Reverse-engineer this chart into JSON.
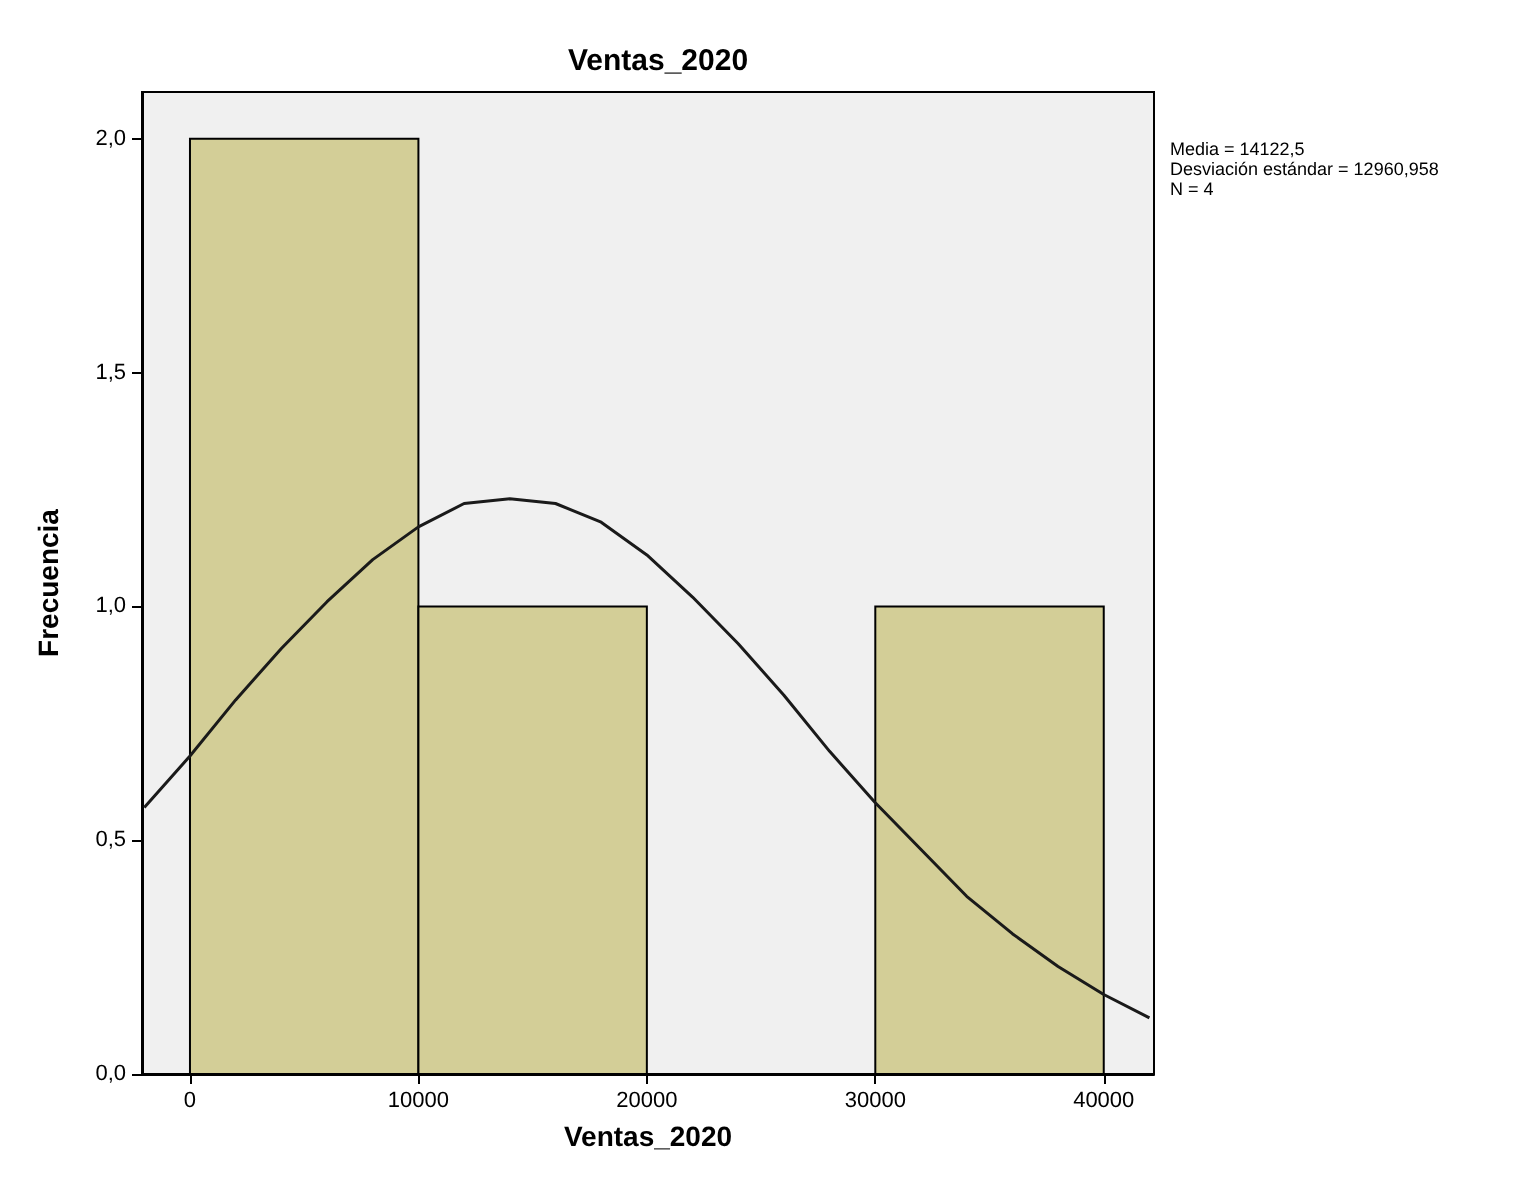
{
  "chart_data": {
    "type": "histogram",
    "title": "Ventas_2020",
    "xlabel": "Ventas_2020",
    "ylabel": "Frecuencia",
    "bins": [
      0,
      10000,
      20000,
      30000,
      40000
    ],
    "values": [
      2,
      1,
      0,
      1
    ],
    "color": "#d3ce97",
    "series": [
      {
        "type": "line",
        "color": "#1a1a1a",
        "x": [
          -2000,
          0,
          2000,
          4000,
          6000,
          8000,
          10000,
          12000,
          14000,
          16000,
          18000,
          20000,
          22000,
          24000,
          26000,
          28000,
          30000,
          32000,
          34000,
          36000,
          38000,
          40000,
          42000
        ],
        "values": [
          0.57,
          0.68,
          0.8,
          0.91,
          1.01,
          1.1,
          1.17,
          1.22,
          1.23,
          1.22,
          1.18,
          1.11,
          1.02,
          0.92,
          0.81,
          0.69,
          0.58,
          0.48,
          0.38,
          0.3,
          0.23,
          0.17,
          0.12
        ]
      }
    ],
    "xlim": [
      -2100,
      42200
    ],
    "xticks": [
      0,
      10000,
      20000,
      30000,
      40000
    ],
    "ylim": [
      0,
      2.1
    ],
    "yticks": [
      {
        "value": 0,
        "label": "0,0"
      },
      {
        "value": 0.5,
        "label": "0,5"
      },
      {
        "value": 1,
        "label": "1,0"
      },
      {
        "value": 1.5,
        "label": "1,5"
      },
      {
        "value": 2,
        "label": "2,0"
      }
    ],
    "annotations": [
      "Media = 14122,5",
      "Desviación estándar = 12960,958",
      "N = 4"
    ],
    "grid": false,
    "marker": "none",
    "line_style": "solid"
  }
}
